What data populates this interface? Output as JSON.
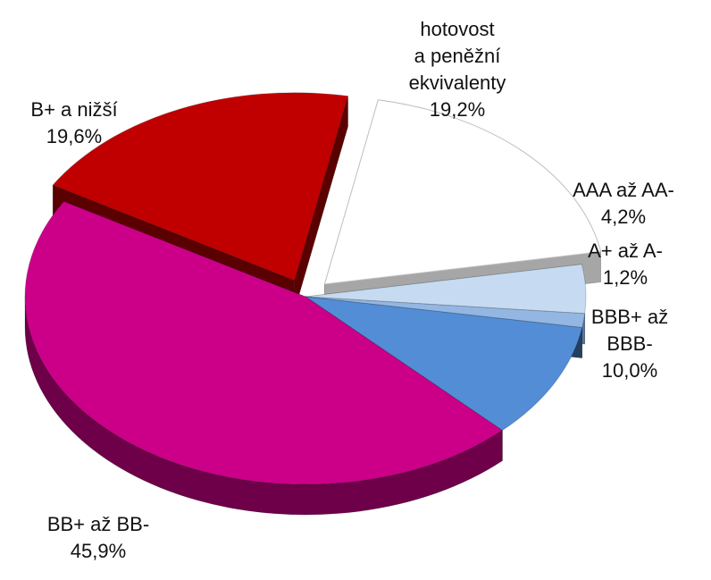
{
  "chart_data": {
    "type": "pie",
    "title": "",
    "style": "3d-exploded",
    "slices": [
      {
        "label_lines": [
          "hotovost",
          "a peněžní",
          "ekvivalenty"
        ],
        "value_text": "19,2%",
        "value": 19.2,
        "color": "#ffffff",
        "side_color": "#a6a6a6",
        "exploded": true
      },
      {
        "label_lines": [
          "AAA až AA-"
        ],
        "value_text": "4,2%",
        "value": 4.2,
        "color": "#c6dbf1",
        "side_color": "#8aa4c4",
        "exploded": false
      },
      {
        "label_lines": [
          "A+ až A-"
        ],
        "value_text": "1,2%",
        "value": 1.2,
        "color": "#94b6e2",
        "side_color": "#57779f",
        "exploded": false
      },
      {
        "label_lines": [
          "BBB+ až",
          "BBB-"
        ],
        "value_text": "10,0%",
        "value": 10.0,
        "color": "#538dd5",
        "side_color": "#243f60",
        "exploded": false
      },
      {
        "label_lines": [
          "BB+ až BB-"
        ],
        "value_text": "45,9%",
        "value": 45.9,
        "color": "#cc0088",
        "side_color": "#6e0049",
        "exploded": false
      },
      {
        "label_lines": [
          "B+ a nižší"
        ],
        "value_text": "19,6%",
        "value": 19.6,
        "color": "#c00000",
        "side_color": "#5a0000",
        "exploded": true
      }
    ]
  }
}
